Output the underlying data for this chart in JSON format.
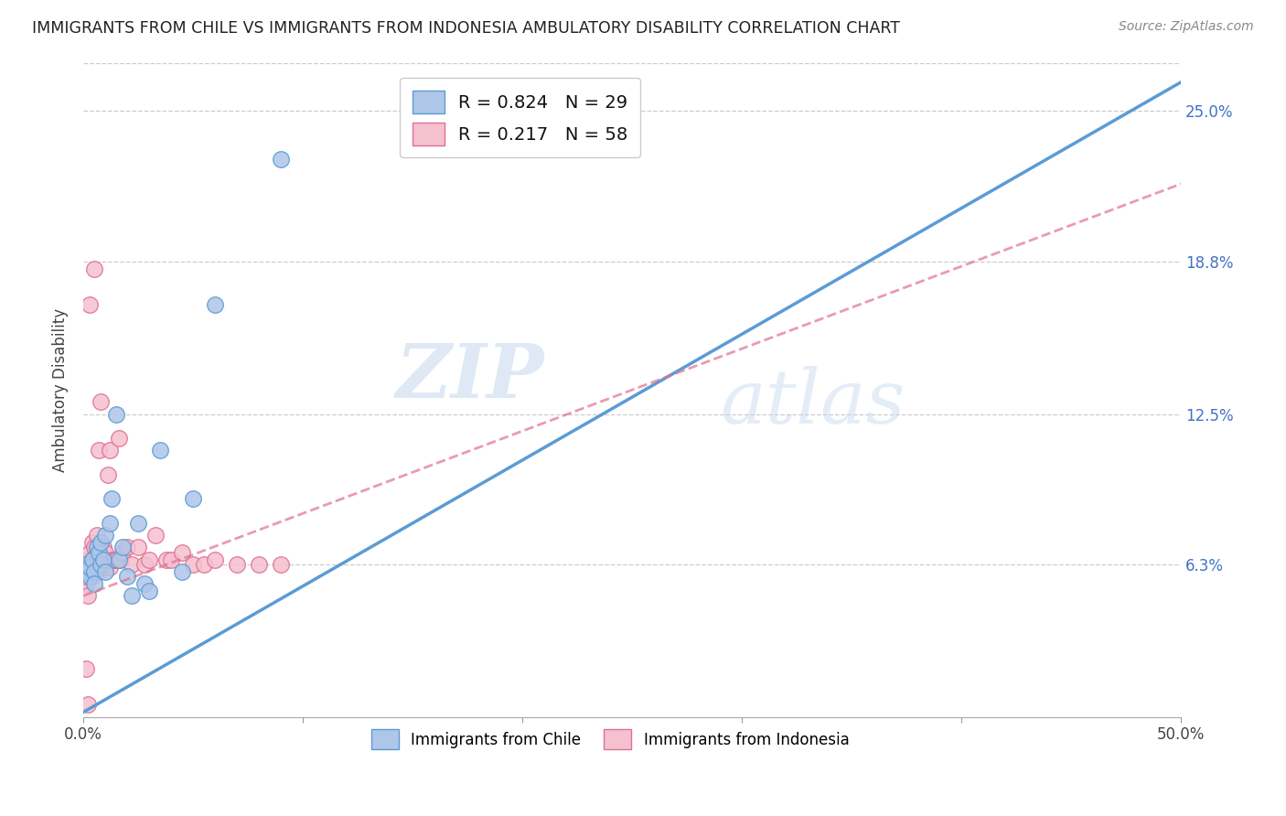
{
  "title": "IMMIGRANTS FROM CHILE VS IMMIGRANTS FROM INDONESIA AMBULATORY DISABILITY CORRELATION CHART",
  "source": "Source: ZipAtlas.com",
  "ylabel": "Ambulatory Disability",
  "ytick_labels": [
    "6.3%",
    "12.5%",
    "18.8%",
    "25.0%"
  ],
  "ytick_values": [
    0.063,
    0.125,
    0.188,
    0.25
  ],
  "xlim": [
    0.0,
    0.5
  ],
  "ylim": [
    0.0,
    0.27
  ],
  "chile_color": "#aec6e8",
  "chile_color_dark": "#5b9bd5",
  "indonesia_color": "#f5c0d0",
  "indonesia_color_dark": "#e07090",
  "chile_R": 0.824,
  "chile_N": 29,
  "indonesia_R": 0.217,
  "indonesia_N": 58,
  "watermark_zip": "ZIP",
  "watermark_atlas": "atlas",
  "chile_line_x0": 0.0,
  "chile_line_y0": 0.002,
  "chile_line_x1": 0.5,
  "chile_line_y1": 0.262,
  "indonesia_line_x0": 0.0,
  "indonesia_line_y0": 0.05,
  "indonesia_line_x1": 0.5,
  "indonesia_line_y1": 0.22,
  "chile_scatter_x": [
    0.001,
    0.002,
    0.003,
    0.003,
    0.004,
    0.005,
    0.005,
    0.006,
    0.007,
    0.008,
    0.008,
    0.009,
    0.01,
    0.01,
    0.012,
    0.013,
    0.015,
    0.016,
    0.018,
    0.02,
    0.022,
    0.025,
    0.028,
    0.03,
    0.035,
    0.045,
    0.05,
    0.06,
    0.09
  ],
  "chile_scatter_y": [
    0.063,
    0.06,
    0.058,
    0.062,
    0.065,
    0.06,
    0.055,
    0.07,
    0.068,
    0.063,
    0.072,
    0.065,
    0.06,
    0.075,
    0.08,
    0.09,
    0.125,
    0.065,
    0.07,
    0.058,
    0.05,
    0.08,
    0.055,
    0.052,
    0.11,
    0.06,
    0.09,
    0.17,
    0.23
  ],
  "indonesia_scatter_x": [
    0.001,
    0.001,
    0.001,
    0.002,
    0.002,
    0.002,
    0.002,
    0.003,
    0.003,
    0.003,
    0.003,
    0.004,
    0.004,
    0.004,
    0.005,
    0.005,
    0.005,
    0.005,
    0.006,
    0.006,
    0.006,
    0.006,
    0.007,
    0.007,
    0.007,
    0.008,
    0.008,
    0.008,
    0.009,
    0.009,
    0.01,
    0.01,
    0.011,
    0.012,
    0.012,
    0.013,
    0.014,
    0.015,
    0.016,
    0.017,
    0.018,
    0.02,
    0.022,
    0.025,
    0.028,
    0.03,
    0.033,
    0.038,
    0.04,
    0.045,
    0.05,
    0.055,
    0.06,
    0.07,
    0.08,
    0.09,
    0.001,
    0.002
  ],
  "indonesia_scatter_y": [
    0.06,
    0.055,
    0.058,
    0.062,
    0.065,
    0.06,
    0.05,
    0.063,
    0.068,
    0.06,
    0.17,
    0.058,
    0.065,
    0.072,
    0.06,
    0.062,
    0.07,
    0.185,
    0.063,
    0.06,
    0.075,
    0.068,
    0.06,
    0.065,
    0.11,
    0.062,
    0.13,
    0.065,
    0.063,
    0.07,
    0.068,
    0.063,
    0.1,
    0.062,
    0.11,
    0.065,
    0.065,
    0.065,
    0.115,
    0.065,
    0.068,
    0.07,
    0.063,
    0.07,
    0.063,
    0.065,
    0.075,
    0.065,
    0.065,
    0.068,
    0.063,
    0.063,
    0.065,
    0.063,
    0.063,
    0.063,
    0.02,
    0.005
  ]
}
